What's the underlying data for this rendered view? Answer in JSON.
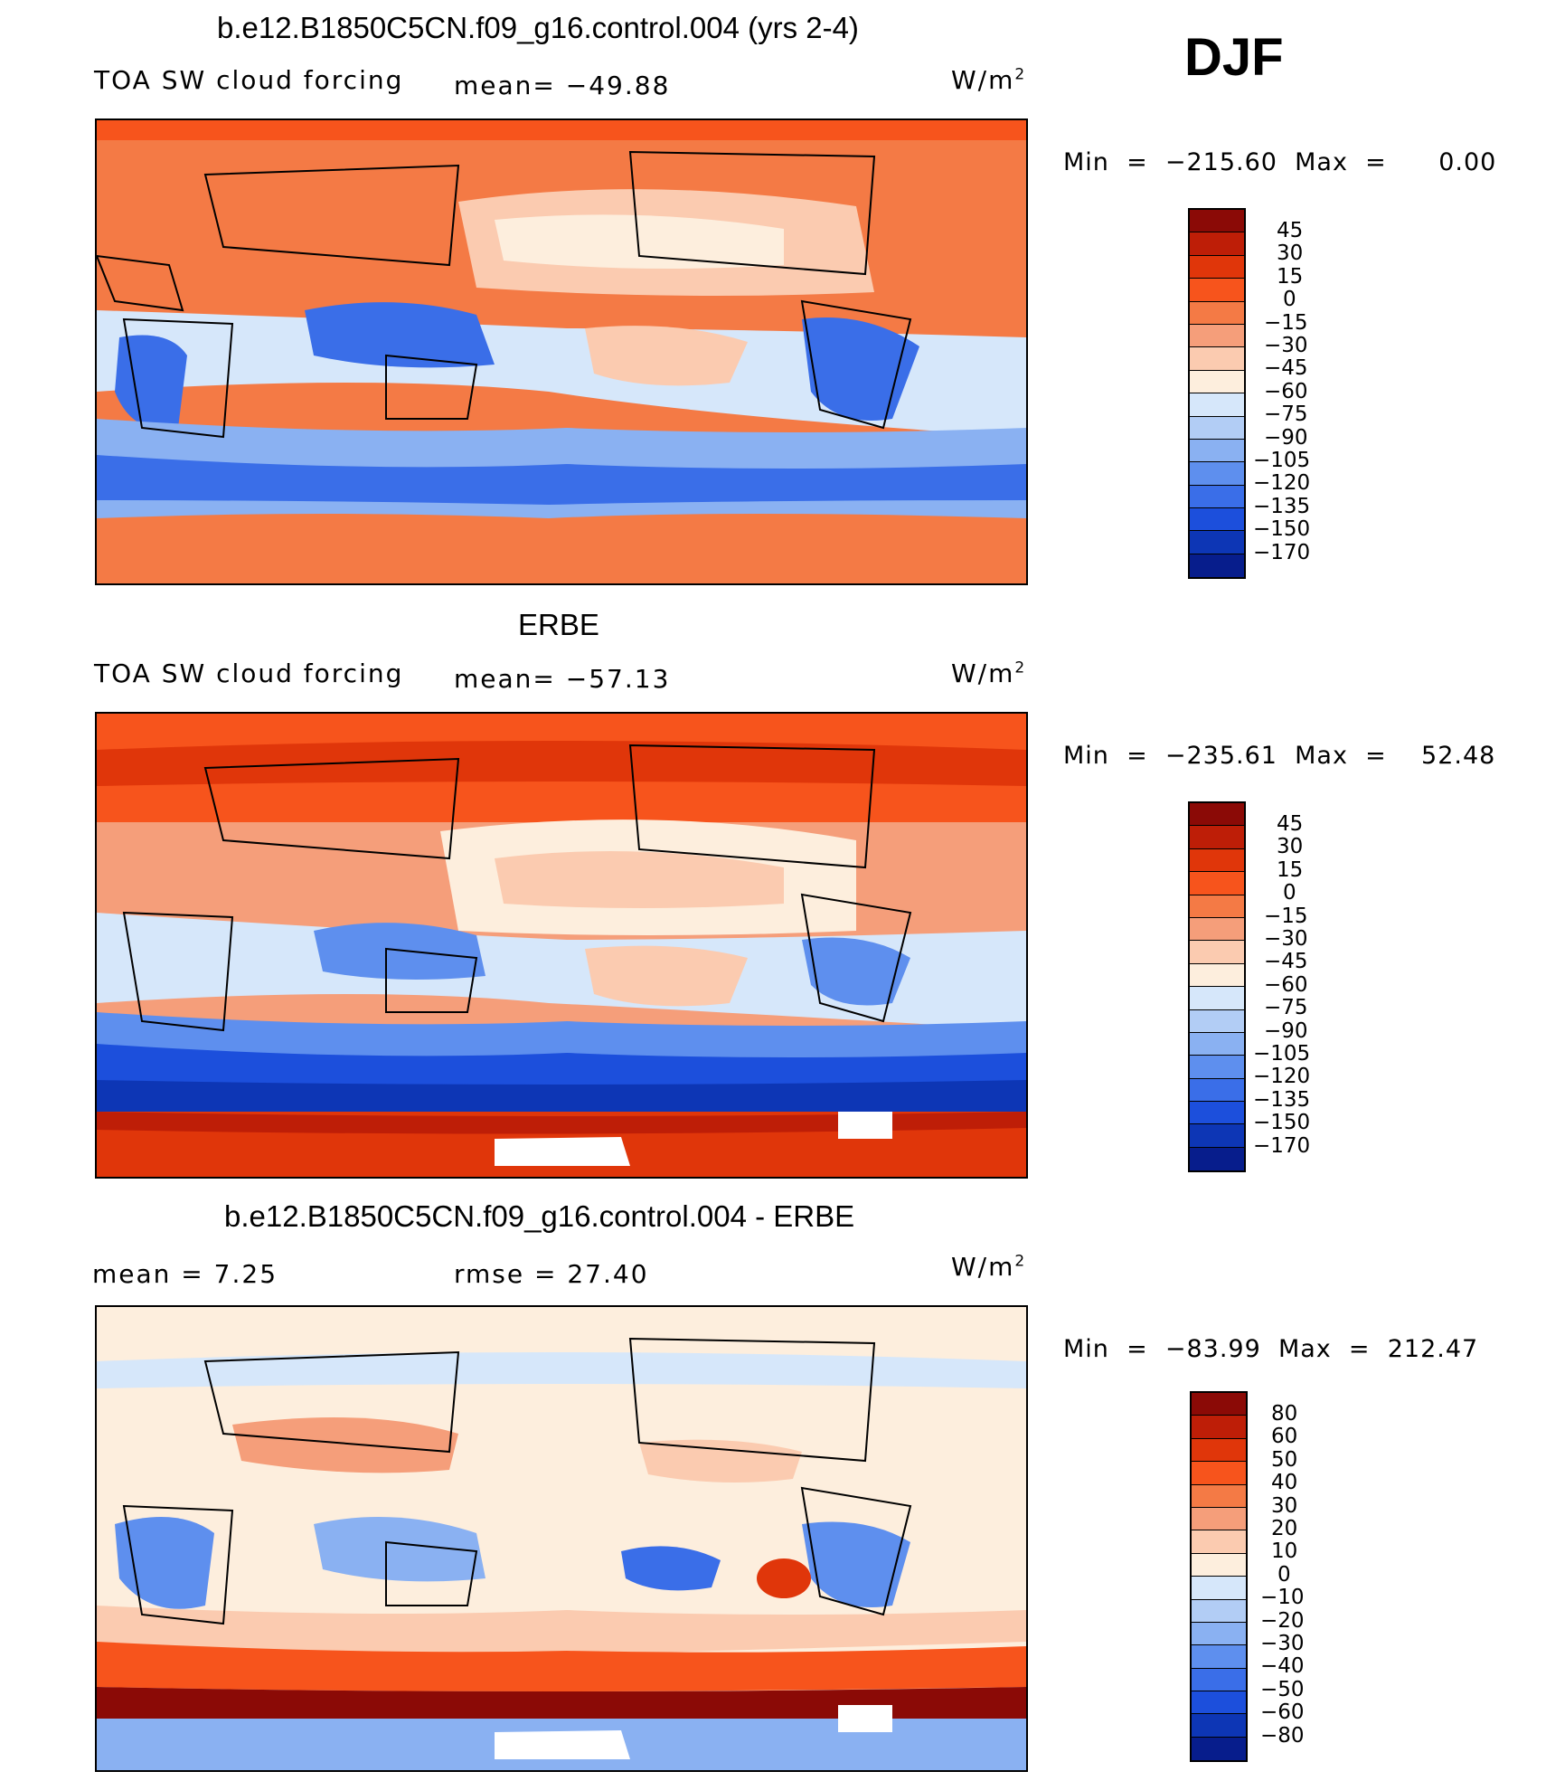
{
  "season": "DJF",
  "panels": [
    {
      "title": "b.e12.B1850C5CN.f09_g16.control.004 (yrs 2-4)",
      "left_label": "TOA SW cloud forcing",
      "stat_label": "mean= −49.88",
      "units": "W/m",
      "units_sup": "2",
      "minmax": "Min  =  −215.60  Max  =      0.00",
      "colorbar": {
        "labels": [
          "45",
          "30",
          "15",
          "0",
          "−15",
          "−30",
          "−45",
          "−60",
          "−75",
          "−90",
          "−105",
          "−120",
          "−135",
          "−150",
          "−170"
        ],
        "colors": [
          "#8b0a06",
          "#be1e07",
          "#e0360a",
          "#f7541c",
          "#f47a45",
          "#f59e7a",
          "#fbcbb0",
          "#fdeedd",
          "#d6e7fa",
          "#b2cdf5",
          "#8ab1f2",
          "#5e8fee",
          "#3a6ee8",
          "#1c4fdc",
          "#0d36b5",
          "#071d8c"
        ]
      }
    },
    {
      "title": "ERBE",
      "left_label": "TOA SW cloud forcing",
      "stat_label": "mean= −57.13",
      "units": "W/m",
      "units_sup": "2",
      "minmax": "Min  =  −235.61  Max  =    52.48",
      "colorbar": {
        "labels": [
          "45",
          "30",
          "15",
          "0",
          "−15",
          "−30",
          "−45",
          "−60",
          "−75",
          "−90",
          "−105",
          "−120",
          "−135",
          "−150",
          "−170"
        ],
        "colors": [
          "#8b0a06",
          "#be1e07",
          "#e0360a",
          "#f7541c",
          "#f47a45",
          "#f59e7a",
          "#fbcbb0",
          "#fdeedd",
          "#d6e7fa",
          "#b2cdf5",
          "#8ab1f2",
          "#5e8fee",
          "#3a6ee8",
          "#1c4fdc",
          "#0d36b5",
          "#071d8c"
        ]
      }
    },
    {
      "title": "b.e12.B1850C5CN.f09_g16.control.004 - ERBE",
      "left_label": "mean =    7.25",
      "stat_label": "rmse =  27.40",
      "units": "W/m",
      "units_sup": "2",
      "minmax": "Min  =  −83.99  Max  =  212.47",
      "colorbar": {
        "labels": [
          "80",
          "60",
          "50",
          "40",
          "30",
          "20",
          "10",
          "0",
          "−10",
          "−20",
          "−30",
          "−40",
          "−50",
          "−60",
          "−80"
        ],
        "colors": [
          "#8b0a06",
          "#be1e07",
          "#e0360a",
          "#f7541c",
          "#f47a45",
          "#f59e7a",
          "#fbcbb0",
          "#fdeedd",
          "#d6e7fa",
          "#b2cdf5",
          "#8ab1f2",
          "#5e8fee",
          "#3a6ee8",
          "#1c4fdc",
          "#0d36b5",
          "#071d8c"
        ]
      }
    }
  ]
}
